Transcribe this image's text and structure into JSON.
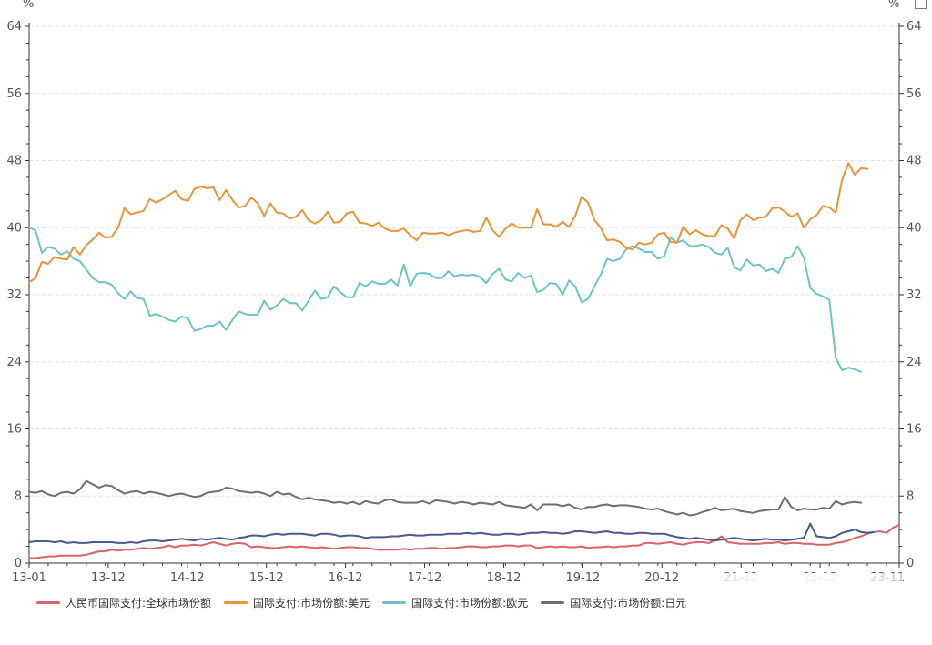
{
  "chart_data": {
    "type": "line",
    "y_unit_left": "%",
    "y_unit_right": "%",
    "ylim": [
      0,
      64
    ],
    "yticks": [
      "0",
      "8",
      "16",
      "24",
      "32",
      "40",
      "48",
      "56",
      "64"
    ],
    "xticks": [
      "13-01",
      "13-12",
      "14-12",
      "15-12",
      "16-12",
      "17-12",
      "18-12",
      "19-12",
      "20-12",
      "21-12",
      "22-12",
      "23-11"
    ],
    "grid": true,
    "legend_position": "bottom-left",
    "series": [
      {
        "name": "人民币国际支付:全球市场份额",
        "color": "#d9636b",
        "values": [
          0.6,
          0.6,
          0.7,
          0.8,
          0.8,
          0.9,
          0.9,
          0.9,
          0.9,
          1.0,
          1.2,
          1.4,
          1.4,
          1.6,
          1.5,
          1.6,
          1.6,
          1.7,
          1.8,
          1.7,
          1.8,
          1.9,
          2.1,
          1.9,
          2.1,
          2.1,
          2.2,
          2.1,
          2.3,
          2.5,
          2.3,
          2.1,
          2.3,
          2.4,
          2.3,
          1.9,
          2.0,
          1.9,
          1.8,
          1.8,
          1.9,
          2.0,
          1.9,
          2.0,
          1.9,
          1.8,
          1.9,
          1.8,
          1.7,
          1.8,
          1.9,
          1.9,
          1.8,
          1.8,
          1.7,
          1.6,
          1.6,
          1.6,
          1.6,
          1.7,
          1.6,
          1.7,
          1.7,
          1.8,
          1.8,
          1.7,
          1.8,
          1.8,
          1.9,
          2.0,
          2.0,
          1.9,
          1.9,
          2.0,
          2.0,
          2.1,
          2.1,
          2.0,
          2.1,
          2.1,
          1.8,
          1.9,
          2.0,
          1.9,
          2.0,
          1.9,
          1.9,
          2.0,
          1.8,
          1.9,
          1.9,
          2.0,
          1.9,
          2.0,
          2.0,
          2.1,
          2.1,
          2.4,
          2.4,
          2.3,
          2.4,
          2.5,
          2.3,
          2.2,
          2.4,
          2.5,
          2.5,
          2.4,
          2.7,
          3.2,
          2.5,
          2.4,
          2.3,
          2.3,
          2.3,
          2.3,
          2.4,
          2.4,
          2.5,
          2.3,
          2.4,
          2.4,
          2.3,
          2.3,
          2.2,
          2.2,
          2.2,
          2.4,
          2.5,
          2.7,
          3.0,
          3.2,
          3.5,
          3.7,
          3.8,
          3.6,
          4.2,
          4.6
        ]
      },
      {
        "name": "国际支付:市场份额:美元",
        "color": "#e8943a",
        "values": [
          33.5,
          34.0,
          35.9,
          35.7,
          36.5,
          36.3,
          36.2,
          37.7,
          36.8,
          37.9,
          38.6,
          39.4,
          38.8,
          38.9,
          40.0,
          42.3,
          41.6,
          41.8,
          42.0,
          43.4,
          43.0,
          43.4,
          43.9,
          44.4,
          43.4,
          43.2,
          44.6,
          44.9,
          44.7,
          44.8,
          43.3,
          44.5,
          43.3,
          42.4,
          42.6,
          43.6,
          42.9,
          41.4,
          42.9,
          41.8,
          41.7,
          41.1,
          41.3,
          42.1,
          40.9,
          40.5,
          40.9,
          41.9,
          40.6,
          40.7,
          41.7,
          41.9,
          40.6,
          40.5,
          40.2,
          40.6,
          39.9,
          39.6,
          39.6,
          39.9,
          39.1,
          38.5,
          39.4,
          39.3,
          39.3,
          39.4,
          39.1,
          39.4,
          39.6,
          39.7,
          39.5,
          39.6,
          41.2,
          39.7,
          38.9,
          39.9,
          40.5,
          40.0,
          40.0,
          40.0,
          42.2,
          40.4,
          40.4,
          40.1,
          40.7,
          40.1,
          41.4,
          43.7,
          43.0,
          40.9,
          40.0,
          38.5,
          38.6,
          38.3,
          37.6,
          37.4,
          38.2,
          38.0,
          38.2,
          39.2,
          39.4,
          38.3,
          38.2,
          40.1,
          39.2,
          39.7,
          39.2,
          39.0,
          39.0,
          40.3,
          39.9,
          38.7,
          40.9,
          41.6,
          40.9,
          41.2,
          41.3,
          42.3,
          42.4,
          41.9,
          41.3,
          41.7,
          40.0,
          41.0,
          41.5,
          42.6,
          42.4,
          41.8,
          45.7,
          47.7,
          46.3,
          47.1,
          47.0
        ]
      },
      {
        "name": "国际支付:市场份额:欧元",
        "color": "#6cc5c3",
        "values": [
          40.0,
          39.7,
          37.0,
          37.7,
          37.5,
          36.8,
          37.2,
          36.3,
          36.0,
          35.0,
          34.0,
          33.5,
          33.5,
          33.2,
          32.2,
          31.5,
          32.4,
          31.6,
          31.5,
          29.5,
          29.7,
          29.4,
          29.0,
          28.8,
          29.4,
          29.2,
          27.7,
          27.9,
          28.3,
          28.3,
          28.8,
          27.8,
          29.0,
          30.0,
          29.7,
          29.6,
          29.6,
          31.3,
          30.2,
          30.7,
          31.5,
          31.0,
          31.0,
          30.1,
          31.3,
          32.5,
          31.5,
          31.7,
          33.0,
          32.3,
          31.7,
          31.7,
          33.4,
          33.0,
          33.6,
          33.3,
          33.3,
          33.8,
          33.1,
          35.6,
          33.0,
          34.5,
          34.6,
          34.5,
          34.0,
          34.0,
          34.8,
          34.2,
          34.4,
          34.3,
          34.4,
          34.1,
          33.4,
          34.5,
          35.1,
          33.8,
          33.6,
          34.6,
          34.0,
          34.3,
          32.3,
          32.6,
          33.4,
          33.3,
          32.0,
          33.7,
          33.0,
          31.1,
          31.5,
          33.0,
          34.4,
          36.3,
          36.0,
          36.3,
          37.4,
          37.8,
          37.5,
          37.1,
          37.1,
          36.3,
          36.6,
          38.8,
          38.2,
          38.5,
          37.8,
          37.8,
          38.0,
          37.7,
          37.0,
          36.8,
          37.6,
          35.3,
          34.9,
          36.2,
          35.5,
          35.6,
          34.8,
          35.1,
          34.6,
          36.3,
          36.5,
          37.8,
          36.4,
          32.8,
          32.1,
          31.8,
          31.4,
          24.5,
          23.0,
          23.3,
          23.1,
          22.8
        ]
      },
      {
        "name": "国际支付:市场份额:日元",
        "color": "#6e6e78",
        "values": [
          8.5,
          8.4,
          8.6,
          8.2,
          8.0,
          8.4,
          8.5,
          8.3,
          8.8,
          9.8,
          9.4,
          9.0,
          9.3,
          9.2,
          8.7,
          8.3,
          8.5,
          8.6,
          8.3,
          8.5,
          8.4,
          8.2,
          8.0,
          8.2,
          8.3,
          8.1,
          7.9,
          8.0,
          8.4,
          8.5,
          8.6,
          9.0,
          8.9,
          8.6,
          8.5,
          8.4,
          8.5,
          8.3,
          8.0,
          8.5,
          8.2,
          8.3,
          7.9,
          7.6,
          7.8,
          7.6,
          7.5,
          7.4,
          7.2,
          7.3,
          7.1,
          7.3,
          7.0,
          7.4,
          7.2,
          7.1,
          7.5,
          7.6,
          7.3,
          7.2,
          7.2,
          7.2,
          7.4,
          7.1,
          7.5,
          7.4,
          7.3,
          7.1,
          7.3,
          7.2,
          7.0,
          7.2,
          7.1,
          7.0,
          7.3,
          6.9,
          6.8,
          6.7,
          6.6,
          7.0,
          6.3,
          7.0,
          7.0,
          7.0,
          6.8,
          7.0,
          6.6,
          6.4,
          6.7,
          6.7,
          6.9,
          7.0,
          6.8,
          6.9,
          6.9,
          6.8,
          6.7,
          6.5,
          6.4,
          6.5,
          6.2,
          6.0,
          5.8,
          6.0,
          5.7,
          5.8,
          6.1,
          6.3,
          6.6,
          6.3,
          6.4,
          6.5,
          6.2,
          6.1,
          6.0,
          6.2,
          6.3,
          6.4,
          6.4,
          7.9,
          6.7,
          6.3,
          6.5,
          6.4,
          6.4,
          6.6,
          6.5,
          7.4,
          7.0,
          7.2,
          7.3,
          7.2
        ]
      },
      {
        "name": "",
        "color": "#4a5a8c",
        "values": [
          2.5,
          2.6,
          2.6,
          2.6,
          2.5,
          2.6,
          2.4,
          2.5,
          2.4,
          2.4,
          2.5,
          2.5,
          2.5,
          2.5,
          2.4,
          2.4,
          2.5,
          2.4,
          2.6,
          2.7,
          2.7,
          2.6,
          2.7,
          2.8,
          2.9,
          2.8,
          2.7,
          2.9,
          2.8,
          2.9,
          3.0,
          2.9,
          2.8,
          3.0,
          3.1,
          3.3,
          3.3,
          3.2,
          3.4,
          3.5,
          3.4,
          3.5,
          3.5,
          3.5,
          3.4,
          3.3,
          3.5,
          3.5,
          3.4,
          3.2,
          3.3,
          3.3,
          3.2,
          3.0,
          3.1,
          3.1,
          3.1,
          3.2,
          3.2,
          3.3,
          3.4,
          3.3,
          3.3,
          3.4,
          3.4,
          3.4,
          3.5,
          3.5,
          3.5,
          3.6,
          3.5,
          3.6,
          3.5,
          3.4,
          3.4,
          3.5,
          3.5,
          3.4,
          3.5,
          3.6,
          3.6,
          3.7,
          3.6,
          3.6,
          3.5,
          3.6,
          3.8,
          3.8,
          3.7,
          3.6,
          3.7,
          3.8,
          3.6,
          3.6,
          3.5,
          3.5,
          3.6,
          3.6,
          3.5,
          3.5,
          3.5,
          3.3,
          3.1,
          3.0,
          2.9,
          3.0,
          2.9,
          2.8,
          2.7,
          2.8,
          2.9,
          3.0,
          2.9,
          2.8,
          2.7,
          2.8,
          2.9,
          2.8,
          2.8,
          2.7,
          2.8,
          2.9,
          3.0,
          4.7,
          3.2,
          3.1,
          3.0,
          3.2,
          3.6,
          3.8,
          4.0,
          3.7,
          3.6,
          3.7
        ]
      }
    ]
  }
}
